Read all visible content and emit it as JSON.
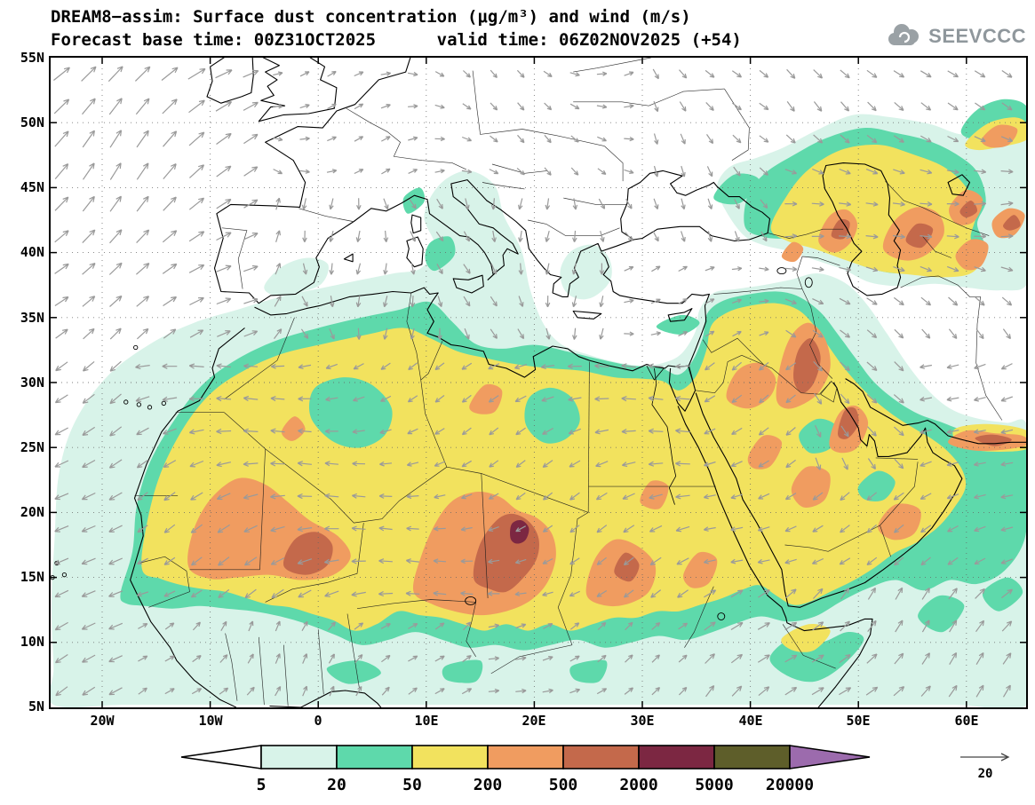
{
  "header": {
    "title_line1": "DREAM8−assim: Surface dust concentration (μg/m³) and wind (m/s)",
    "title_line2": "Forecast base time: 00Z31OCT2025      valid time: 06Z02NOV2025 (+54)",
    "logo_text": "SEEVCCC"
  },
  "map": {
    "y_ticks": [
      "55N",
      "50N",
      "45N",
      "40N",
      "35N",
      "30N",
      "25N",
      "20N",
      "15N",
      "10N",
      "5N"
    ],
    "x_ticks": [
      "20W",
      "10W",
      "0",
      "10E",
      "20E",
      "30E",
      "40E",
      "50E",
      "60E"
    ]
  },
  "colorbar": {
    "labels": [
      "5",
      "20",
      "50",
      "200",
      "500",
      "2000",
      "5000",
      "20000"
    ],
    "colors": [
      "#ffffff",
      "#d8f3e9",
      "#5ed9ab",
      "#f2e25e",
      "#f09c60",
      "#c4694b",
      "#7c2742",
      "#5e5e2a",
      "#9c6bad"
    ],
    "range_names": [
      "below-5",
      "5-20",
      "20-50",
      "50-200",
      "200-500",
      "500-2000",
      "2000-5000",
      "5000-20000",
      "above-20000"
    ]
  },
  "wind_ref": {
    "label": "20"
  },
  "style": {
    "arrow_color": "#9a9a9a",
    "grid_color": "#666666",
    "coast_color": "#000000"
  }
}
